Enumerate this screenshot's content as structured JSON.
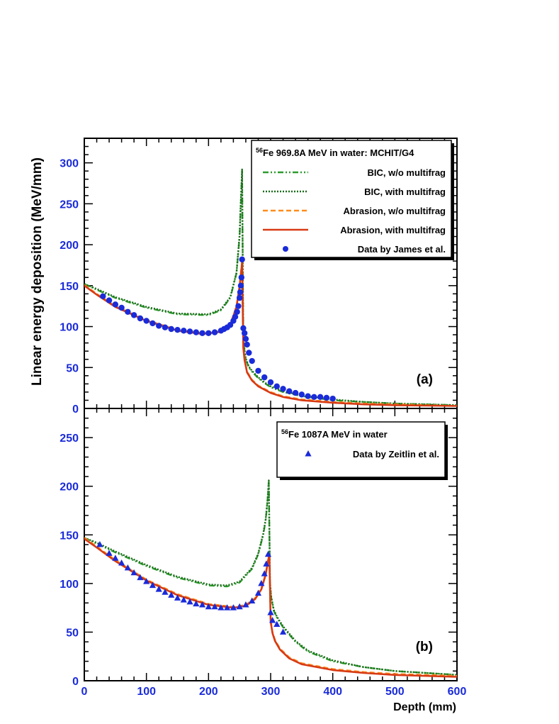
{
  "figure": {
    "ylabel": "Linear energy deposition (MeV/mm)",
    "xlabel": "Depth (mm)"
  },
  "chart_data": [
    {
      "type": "line",
      "panel_label": "(a)",
      "xlim": [
        0,
        600
      ],
      "ylim": [
        0,
        330
      ],
      "x_ticks": [
        0,
        100,
        200,
        300,
        400,
        500,
        600
      ],
      "y_ticks": [
        0,
        50,
        100,
        150,
        200,
        250,
        300
      ],
      "legend_placement": "top-right",
      "legend": {
        "title_sup": "56",
        "title": "Fe 969.8A MeV in water: MCHIT/G4"
      },
      "series": [
        {
          "name": "BIC, w/o multifrag",
          "style": "dashdot",
          "color": "#2e9b2e",
          "x": [
            0,
            20,
            50,
            100,
            150,
            200,
            220,
            235,
            245,
            250,
            252,
            254,
            256,
            258,
            260,
            265,
            270,
            280,
            290,
            300,
            320,
            350,
            400,
            450,
            500,
            550,
            600
          ],
          "y": [
            152,
            145,
            135,
            123,
            115,
            114,
            120,
            135,
            165,
            210,
            250,
            290,
            85,
            70,
            60,
            50,
            45,
            37,
            31,
            26,
            20,
            15,
            10,
            8,
            6,
            5,
            4
          ]
        },
        {
          "name": "BIC, with multifrag",
          "style": "dotted",
          "color": "#1a6b1a",
          "x": [
            0,
            20,
            50,
            100,
            150,
            200,
            220,
            235,
            245,
            250,
            252,
            254,
            256,
            258,
            260,
            265,
            270,
            280,
            290,
            300,
            320,
            350,
            400,
            450,
            500,
            550,
            600
          ],
          "y": [
            152,
            146,
            136,
            124,
            116,
            115,
            121,
            136,
            166,
            212,
            252,
            292,
            86,
            71,
            61,
            51,
            46,
            38,
            32,
            27,
            21,
            16,
            11,
            8,
            6,
            5,
            4
          ]
        },
        {
          "name": "Abrasion, w/o multifrag",
          "style": "dashed",
          "color": "#ff8c1a",
          "x": [
            0,
            20,
            50,
            100,
            150,
            190,
            215,
            235,
            245,
            250,
            254,
            256,
            258,
            262,
            270,
            280,
            300,
            320,
            350,
            400,
            450,
            500,
            600
          ],
          "y": [
            151,
            140,
            125,
            108,
            96,
            92,
            94,
            103,
            125,
            150,
            180,
            75,
            60,
            45,
            35,
            28,
            20,
            15,
            11,
            8,
            6,
            5,
            3
          ]
        },
        {
          "name": "Abrasion, with multifrag",
          "style": "solid",
          "color": "#d73a14",
          "x": [
            0,
            20,
            50,
            100,
            150,
            190,
            215,
            235,
            245,
            250,
            254,
            256,
            258,
            262,
            270,
            280,
            300,
            320,
            350,
            400,
            450,
            500,
            600
          ],
          "y": [
            150,
            139,
            124,
            107,
            95,
            91,
            93,
            102,
            124,
            149,
            178,
            74,
            59,
            44,
            34,
            27,
            19,
            14,
            10,
            7,
            5,
            4,
            3
          ]
        },
        {
          "name": "Data by James et al.",
          "style": "markers",
          "marker": "circle",
          "color": "#1a2bd9",
          "x": [
            30,
            40,
            50,
            60,
            70,
            80,
            90,
            100,
            110,
            120,
            130,
            140,
            150,
            160,
            170,
            180,
            190,
            200,
            210,
            220,
            225,
            230,
            235,
            240,
            243,
            246,
            248,
            250,
            251,
            252,
            253,
            254,
            256,
            258,
            260,
            262,
            265,
            270,
            280,
            290,
            300,
            310,
            320,
            330,
            340,
            350,
            360,
            370,
            380,
            390,
            400
          ],
          "y": [
            137,
            132,
            127,
            123,
            118,
            114,
            110,
            107,
            104,
            101,
            99,
            97,
            96,
            95,
            94,
            93,
            92,
            92,
            93,
            95,
            97,
            99,
            102,
            107,
            112,
            118,
            125,
            135,
            142,
            150,
            160,
            182,
            98,
            92,
            85,
            78,
            68,
            58,
            46,
            38,
            32,
            27,
            24,
            21,
            19,
            17,
            15,
            14,
            14,
            13,
            12
          ]
        }
      ]
    },
    {
      "type": "line",
      "panel_label": "(b)",
      "xlim": [
        0,
        600
      ],
      "ylim": [
        0,
        280
      ],
      "x_ticks": [
        0,
        100,
        200,
        300,
        400,
        500,
        600
      ],
      "y_ticks": [
        0,
        50,
        100,
        150,
        200,
        250
      ],
      "legend_placement": "top-right",
      "legend": {
        "title_sup": "56",
        "title": "Fe 1087A MeV in water"
      },
      "series": [
        {
          "name": "",
          "style": "dashdot",
          "color": "#2e9b2e",
          "x": [
            0,
            20,
            50,
            100,
            150,
            200,
            230,
            250,
            270,
            280,
            288,
            292,
            295,
            297,
            299,
            301,
            305,
            310,
            320,
            340,
            360,
            400,
            450,
            500,
            550,
            600
          ],
          "y": [
            147,
            141,
            132,
            118,
            106,
            98,
            97,
            101,
            115,
            130,
            150,
            165,
            185,
            205,
            100,
            85,
            72,
            65,
            55,
            40,
            30,
            20,
            14,
            10,
            8,
            6
          ]
        },
        {
          "name": "",
          "style": "dotted",
          "color": "#1a6b1a",
          "x": [
            0,
            20,
            50,
            100,
            150,
            200,
            230,
            250,
            270,
            280,
            288,
            292,
            295,
            297,
            299,
            301,
            305,
            310,
            320,
            340,
            360,
            400,
            450,
            500,
            550,
            600
          ],
          "y": [
            147,
            142,
            133,
            119,
            107,
            99,
            98,
            102,
            116,
            131,
            151,
            166,
            186,
            206,
            101,
            86,
            73,
            66,
            56,
            41,
            31,
            21,
            14,
            10,
            8,
            6
          ]
        },
        {
          "name": "",
          "style": "dashed",
          "color": "#ff8c1a",
          "x": [
            0,
            20,
            50,
            100,
            150,
            200,
            240,
            260,
            275,
            285,
            292,
            296,
            298,
            300,
            303,
            307,
            315,
            330,
            350,
            400,
            450,
            500,
            600
          ],
          "y": [
            147,
            138,
            124,
            104,
            89,
            79,
            76,
            78,
            85,
            95,
            110,
            125,
            130,
            62,
            50,
            42,
            33,
            24,
            18,
            12,
            9,
            7,
            5
          ]
        },
        {
          "name": "",
          "style": "solid",
          "color": "#d73a14",
          "x": [
            0,
            20,
            50,
            100,
            150,
            200,
            240,
            260,
            275,
            285,
            292,
            296,
            298,
            300,
            303,
            307,
            315,
            330,
            350,
            400,
            450,
            500,
            600
          ],
          "y": [
            146,
            137,
            123,
            103,
            88,
            78,
            75,
            77,
            84,
            94,
            109,
            124,
            129,
            61,
            49,
            41,
            32,
            23,
            17,
            11,
            8,
            6,
            4
          ]
        },
        {
          "name": "Data by Zeitlin et al.",
          "style": "markers",
          "marker": "triangle",
          "color": "#1a2bd9",
          "x": [
            25,
            40,
            50,
            60,
            70,
            80,
            90,
            100,
            110,
            120,
            130,
            140,
            150,
            160,
            170,
            180,
            190,
            200,
            210,
            220,
            230,
            240,
            250,
            260,
            270,
            280,
            285,
            290,
            293,
            296,
            300,
            303,
            310,
            320
          ],
          "y": [
            140,
            131,
            126,
            121,
            116,
            111,
            106,
            102,
            98,
            94,
            91,
            88,
            85,
            83,
            81,
            79,
            78,
            76,
            76,
            75,
            75,
            75,
            76,
            78,
            82,
            90,
            100,
            110,
            120,
            130,
            70,
            62,
            58,
            50
          ]
        }
      ]
    }
  ]
}
